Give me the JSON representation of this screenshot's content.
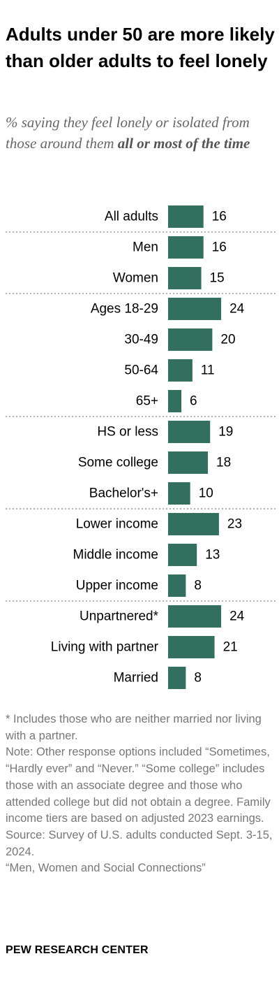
{
  "title": "Adults under 50 are more likely than older adults to feel lonely",
  "subtitle_prefix": "% saying they feel lonely or isolated from those around them ",
  "subtitle_emphasis": "all or most of the time",
  "chart_data": {
    "type": "bar",
    "orientation": "horizontal",
    "colors": {
      "bar": "#336f5e",
      "divider": "#999999"
    },
    "categories": [
      "All adults",
      "Men",
      "Women",
      "Ages 18-29",
      "30-49",
      "50-64",
      "65+",
      "HS or less",
      "Some college",
      "Bachelor's+",
      "Lower income",
      "Middle income",
      "Upper income",
      "Unpartnered*",
      "Living with partner",
      "Married"
    ],
    "values": [
      16,
      16,
      15,
      24,
      20,
      11,
      6,
      19,
      18,
      10,
      23,
      13,
      8,
      24,
      21,
      8
    ],
    "groups": [
      [
        "All adults"
      ],
      [
        "Men",
        "Women"
      ],
      [
        "Ages 18-29",
        "30-49",
        "50-64",
        "65+"
      ],
      [
        "HS or less",
        "Some college",
        "Bachelor's+"
      ],
      [
        "Lower income",
        "Middle income",
        "Upper income"
      ],
      [
        "Unpartnered*",
        "Living with partner",
        "Married"
      ]
    ],
    "data_labels": true,
    "grid": false,
    "legend": "none"
  },
  "notes": [
    "* Includes those who are neither married nor living with a partner.",
    "Note: Other response options included “Sometimes, “Hardly ever” and “Never.” “Some college” includes those with an associate degree and those who attended college but did not obtain a degree. Family income tiers are based on adjusted 2023 earnings.",
    "Source: Survey of U.S. adults conducted Sept. 3-15, 2024.",
    "“Men, Women and Social Connections”"
  ],
  "brand": "PEW RESEARCH CENTER"
}
